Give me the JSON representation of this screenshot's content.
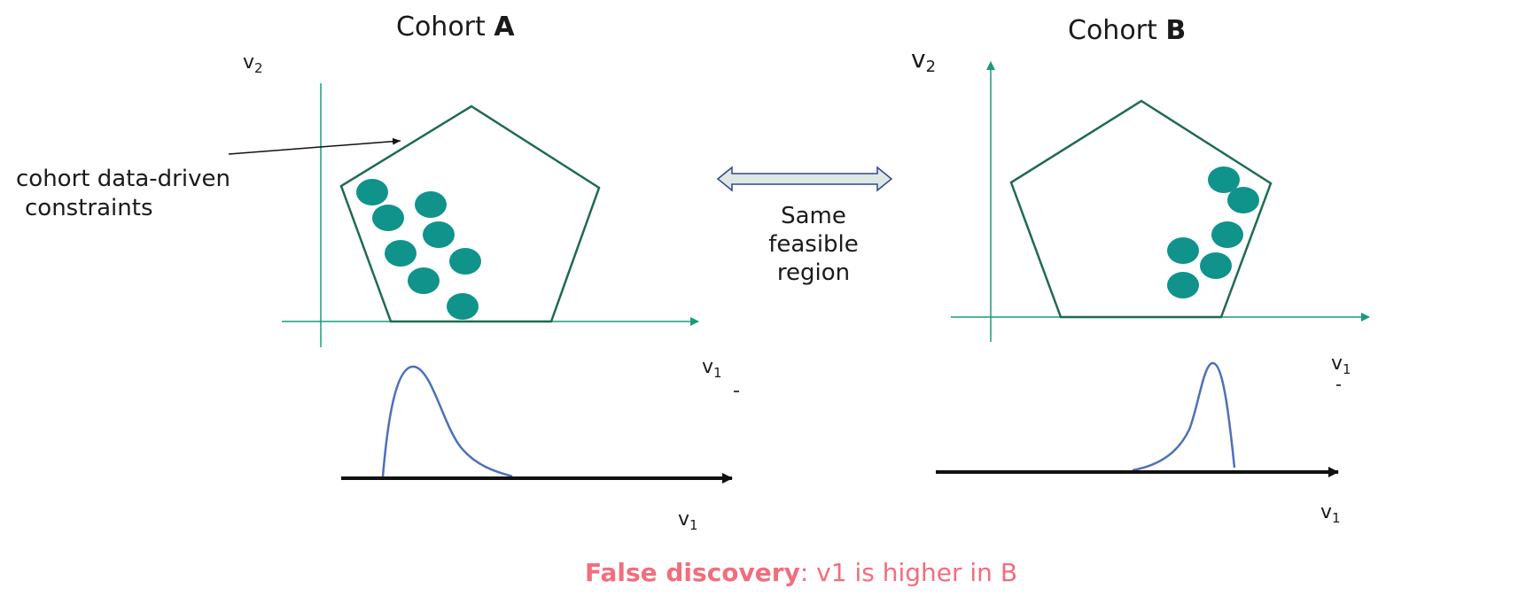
{
  "colors": {
    "axis": "#1a9b7b",
    "pentagon": "#1e6b4e",
    "dots": "#0f938b",
    "density_curve": "#4f6fb8",
    "baseline": "#111111",
    "double_arrow_fill": "#dde8e4",
    "double_arrow_stroke": "#2e4a8c",
    "footer": "#f26d7d"
  },
  "cohort_a": {
    "title_prefix": "Cohort ",
    "title_letter": "A",
    "y_axis_label": "v",
    "y_axis_sub": "2",
    "x_axis_label": "v",
    "x_axis_sub": "1",
    "density_axis_label": "v",
    "density_axis_sub": "1",
    "annotation_line1": "cohort data-driven",
    "annotation_line2": "constraints"
  },
  "cohort_b": {
    "title_prefix": "Cohort ",
    "title_letter": "B",
    "y_axis_label": "v",
    "y_axis_sub": "2",
    "x_axis_label": "v",
    "x_axis_sub": "1",
    "density_axis_label": "v",
    "density_axis_sub": "1"
  },
  "middle": {
    "line1": "Same",
    "line2": "feasible",
    "line3": "region"
  },
  "footer": {
    "bold": "False discovery",
    "rest": ": v1 is higher in B"
  }
}
